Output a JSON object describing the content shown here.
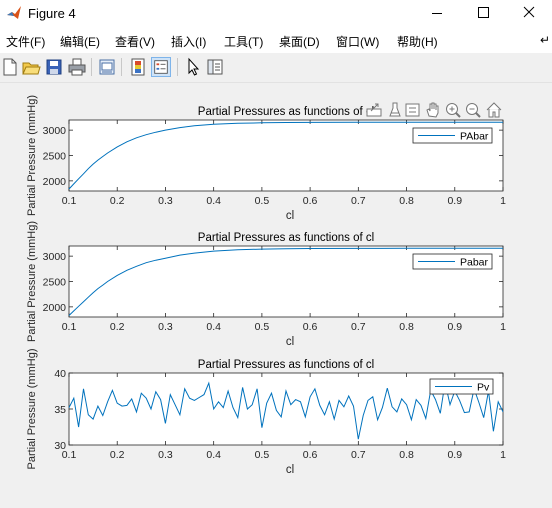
{
  "window": {
    "title": "Figure 4"
  },
  "menu": [
    "文件(F)",
    "编辑(E)",
    "查看(V)",
    "插入(I)",
    "工具(T)",
    "桌面(D)",
    "窗口(W)",
    "帮助(H)"
  ],
  "menu_overflow": "↵",
  "toolbar": {
    "buttons": [
      "new-figure-icon",
      "open-file-icon",
      "save-icon",
      "print-icon",
      "link-plot-icon",
      "insert-colorbar-icon",
      "insert-legend-icon",
      "edit-plot-icon",
      "property-inspector-icon"
    ],
    "selected": "insert-legend-icon"
  },
  "axes_toolbar": [
    "export-icon",
    "brush-icon",
    "data-tips-icon",
    "pan-icon",
    "zoom-in-icon",
    "zoom-out-icon",
    "home-icon"
  ],
  "colors": {
    "line": "#0072bd",
    "axes_bg": "#ffffff",
    "figure_bg": "#f0f0f0"
  },
  "chart_data": [
    {
      "type": "line",
      "title": "Partial Pressures as functions of cl",
      "xlabel": "cl",
      "ylabel": "Partial Pressure (mmHg)",
      "xlim": [
        0.1,
        1
      ],
      "ylim": [
        1800,
        3200
      ],
      "xticks": [
        "0.1",
        "0.2",
        "0.3",
        "0.4",
        "0.5",
        "0.6",
        "0.7",
        "0.8",
        "0.9",
        "1"
      ],
      "yticks": [
        "2000",
        "2500",
        "3000"
      ],
      "legend_position": "top-right",
      "series": [
        {
          "name": "PAbar",
          "x": [
            0.1,
            0.11,
            0.12,
            0.13,
            0.14,
            0.15,
            0.16,
            0.17,
            0.18,
            0.2,
            0.22,
            0.24,
            0.26,
            0.28,
            0.3,
            0.33,
            0.36,
            0.4,
            0.45,
            0.5,
            0.55,
            0.6,
            0.7,
            0.8,
            0.9,
            1.0
          ],
          "y": [
            1840,
            1940,
            2040,
            2140,
            2240,
            2330,
            2410,
            2480,
            2550,
            2670,
            2770,
            2850,
            2910,
            2960,
            3000,
            3050,
            3085,
            3115,
            3135,
            3145,
            3150,
            3153,
            3155,
            3156,
            3156,
            3156
          ]
        }
      ]
    },
    {
      "type": "line",
      "title": "Partial Pressures as functions of cl",
      "xlabel": "cl",
      "ylabel": "Partial Pressure (mmHg)",
      "xlim": [
        0.1,
        1
      ],
      "ylim": [
        1800,
        3200
      ],
      "xticks": [
        "0.1",
        "0.2",
        "0.3",
        "0.4",
        "0.5",
        "0.6",
        "0.7",
        "0.8",
        "0.9",
        "1"
      ],
      "yticks": [
        "2000",
        "2500",
        "3000"
      ],
      "legend_position": "top-right",
      "series": [
        {
          "name": "Pabar",
          "x": [
            0.1,
            0.11,
            0.12,
            0.13,
            0.14,
            0.15,
            0.16,
            0.17,
            0.18,
            0.2,
            0.22,
            0.24,
            0.26,
            0.28,
            0.3,
            0.33,
            0.36,
            0.4,
            0.45,
            0.5,
            0.55,
            0.6,
            0.7,
            0.8,
            0.9,
            1.0
          ],
          "y": [
            1830,
            1920,
            2010,
            2100,
            2190,
            2280,
            2360,
            2430,
            2500,
            2620,
            2720,
            2800,
            2870,
            2920,
            2960,
            3020,
            3060,
            3100,
            3125,
            3138,
            3145,
            3150,
            3153,
            3155,
            3156,
            3156
          ]
        }
      ]
    },
    {
      "type": "line",
      "title": "Partial Pressures as functions of cl",
      "xlabel": "cl",
      "ylabel": "Partial Pressure (mmHg)",
      "xlim": [
        0.1,
        1
      ],
      "ylim": [
        30,
        40
      ],
      "xticks": [
        "0.1",
        "0.2",
        "0.3",
        "0.4",
        "0.5",
        "0.6",
        "0.7",
        "0.8",
        "0.9",
        "1"
      ],
      "yticks": [
        "30",
        "35",
        "40"
      ],
      "legend_position": "top-right",
      "series": [
        {
          "name": "Pv",
          "x": [
            0.1,
            0.11,
            0.12,
            0.13,
            0.14,
            0.15,
            0.16,
            0.17,
            0.18,
            0.19,
            0.2,
            0.21,
            0.22,
            0.23,
            0.24,
            0.25,
            0.26,
            0.27,
            0.28,
            0.29,
            0.3,
            0.31,
            0.32,
            0.33,
            0.34,
            0.35,
            0.36,
            0.37,
            0.38,
            0.39,
            0.4,
            0.41,
            0.42,
            0.43,
            0.44,
            0.45,
            0.46,
            0.47,
            0.48,
            0.49,
            0.5,
            0.51,
            0.52,
            0.53,
            0.54,
            0.55,
            0.56,
            0.57,
            0.58,
            0.59,
            0.6,
            0.61,
            0.62,
            0.63,
            0.64,
            0.65,
            0.66,
            0.67,
            0.68,
            0.69,
            0.7,
            0.71,
            0.72,
            0.73,
            0.74,
            0.75,
            0.76,
            0.77,
            0.78,
            0.79,
            0.8,
            0.81,
            0.82,
            0.83,
            0.84,
            0.85,
            0.86,
            0.87,
            0.88,
            0.89,
            0.9,
            0.91,
            0.92,
            0.93,
            0.94,
            0.95,
            0.96,
            0.97,
            0.98,
            0.99,
            1.0
          ],
          "y": [
            35.2,
            36.5,
            32.5,
            37.8,
            34.2,
            33.6,
            35.4,
            34.1,
            36.0,
            37.6,
            35.8,
            35.4,
            35.5,
            36.4,
            34.6,
            37.2,
            36.5,
            35.0,
            37.4,
            36.3,
            33.0,
            37.0,
            35.6,
            34.2,
            37.8,
            36.5,
            36.2,
            36.6,
            37.0,
            38.6,
            35.0,
            36.0,
            35.2,
            37.5,
            35.2,
            33.8,
            38.0,
            35.0,
            35.6,
            37.8,
            32.4,
            35.8,
            37.2,
            34.8,
            33.9,
            37.5,
            35.6,
            36.3,
            36.0,
            33.9,
            36.7,
            37.8,
            35.5,
            34.2,
            36.0,
            33.6,
            36.2,
            35.3,
            36.8,
            35.4,
            30.8,
            34.1,
            36.2,
            36.7,
            33.5,
            35.2,
            37.9,
            35.3,
            34.6,
            36.4,
            35.6,
            33.5,
            36.3,
            35.5,
            33.7,
            37.6,
            36.3,
            34.4,
            38.7,
            35.6,
            37.5,
            36.2,
            34.5,
            34.6,
            37.8,
            35.9,
            33.8,
            37.5,
            31.9,
            36.0,
            34.6
          ]
        }
      ]
    }
  ]
}
